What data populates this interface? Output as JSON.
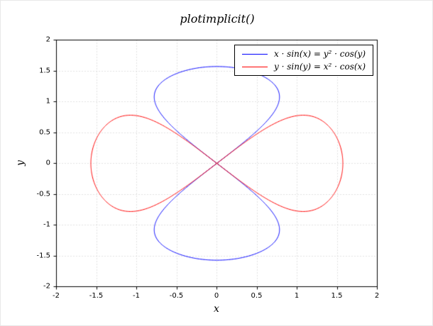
{
  "title": "plotimplicit()",
  "axes": {
    "xlabel": "x",
    "ylabel": "y",
    "xlim": [
      -2,
      2
    ],
    "ylim": [
      -2,
      2
    ],
    "xticks": [
      -2,
      -1.5,
      -1,
      -0.5,
      0,
      0.5,
      1,
      1.5,
      2
    ],
    "yticks": [
      -2,
      -1.5,
      -1,
      -0.5,
      0,
      0.5,
      1,
      1.5,
      2
    ]
  },
  "legend": {
    "items": [
      {
        "label": "x · sin(x) = y² · cos(y)",
        "color": "#0000ff"
      },
      {
        "label": "y · sin(y) = x² · cos(x)",
        "color": "#ff0000"
      }
    ]
  },
  "chart_data": {
    "type": "line",
    "subtype": "implicit-curves",
    "title": "plotimplicit()",
    "xlabel": "x",
    "ylabel": "y",
    "xlim": [
      -2,
      2
    ],
    "ylim": [
      -2,
      2
    ],
    "xticks": [
      -2,
      -1.5,
      -1,
      -0.5,
      0,
      0.5,
      1,
      1.5,
      2
    ],
    "yticks": [
      -2,
      -1.5,
      -1,
      -0.5,
      0,
      0.5,
      1,
      1.5,
      2
    ],
    "grid": true,
    "legend_position": "top-right-inside",
    "series": [
      {
        "name": "x · sin(x) = y² · cos(y)",
        "equation": "x*sin(x) = y^2*cos(y)",
        "f_js": "x*Math.sin(x) - y*y*Math.cos(y)",
        "color": "#0000ff",
        "notes": "two vertical lobes, pinched at origin, apex at y = ±π/2 ≈ ±1.57, max |x| ≈ 0.85"
      },
      {
        "name": "y · sin(y) = x² · cos(x)",
        "equation": "y*sin(y) = x^2*cos(x)",
        "f_js": "y*Math.sin(y) - x*x*Math.cos(x)",
        "color": "#ff0000",
        "notes": "two horizontal lobes, pinched at origin, apex at x = ±π/2 ≈ ±1.57, max |y| ≈ 0.85"
      }
    ],
    "colors": {
      "grid": "#c8c8c8",
      "axis": "#000000",
      "background": "#ffffff"
    }
  }
}
